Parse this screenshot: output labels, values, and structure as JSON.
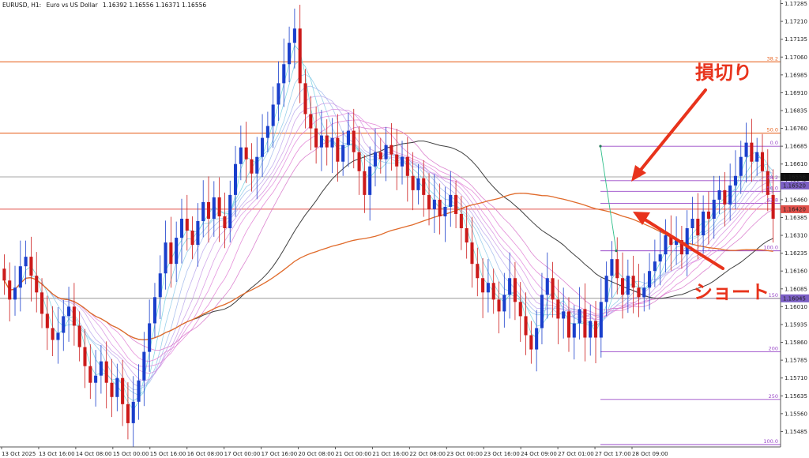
{
  "header": {
    "symbol": "EURUSD, H1:",
    "description": "Euro vs US Dollar",
    "ohlc": "1.16392 1.16556 1.16371 1.16556"
  },
  "annotations": {
    "stop_loss": "損切り",
    "short": "ショート"
  },
  "colors": {
    "bull": "#1a3fcc",
    "bear": "#cc1a1a",
    "orange_level": "#e86a2a",
    "fib_purple": "#9a49c8",
    "arrow": "#e8331c",
    "ma_slow": "#e06a2a",
    "ma_mid": "#404040"
  },
  "chart_data": {
    "type": "candlestick",
    "symbol": "EURUSD",
    "timeframe": "H1",
    "ylim": [
      1.1542,
      1.173
    ],
    "y_ticks": [
      "1.17285",
      "1.17210",
      "1.17135",
      "1.17060",
      "1.16985",
      "1.16910",
      "1.16835",
      "1.16760",
      "1.16685",
      "1.16610",
      "1.16535",
      "1.16460",
      "1.16385",
      "1.16310",
      "1.16235",
      "1.16160",
      "1.16085",
      "1.16010",
      "1.15935",
      "1.15860",
      "1.15785",
      "1.15710",
      "1.15635",
      "1.15560",
      "1.15485"
    ],
    "x_ticks": [
      "13 Oct 2025",
      "13 Oct 16:00",
      "14 Oct 08:00",
      "15 Oct 00:00",
      "15 Oct 16:00",
      "16 Oct 08:00",
      "17 Oct 00:00",
      "17 Oct 16:00",
      "20 Oct 08:00",
      "21 Oct 00:00",
      "21 Oct 16:00",
      "22 Oct 08:00",
      "23 Oct 00:00",
      "23 Oct 16:00",
      "24 Oct 09:00",
      "27 Oct 01:00",
      "27 Oct 17:00",
      "28 Oct 09:00"
    ],
    "closes": [
      1.1612,
      1.1604,
      1.1609,
      1.1618,
      1.1622,
      1.1614,
      1.1607,
      1.1598,
      1.1592,
      1.1587,
      1.159,
      1.1597,
      1.1601,
      1.1593,
      1.1584,
      1.1576,
      1.1569,
      1.1572,
      1.1578,
      1.1569,
      1.1563,
      1.1571,
      1.156,
      1.1552,
      1.1561,
      1.157,
      1.1582,
      1.1594,
      1.1605,
      1.1615,
      1.1628,
      1.1619,
      1.163,
      1.1638,
      1.1633,
      1.1627,
      1.1637,
      1.1645,
      1.1638,
      1.1647,
      1.1639,
      1.1634,
      1.1648,
      1.1661,
      1.1668,
      1.1663,
      1.1657,
      1.1664,
      1.1672,
      1.1677,
      1.1686,
      1.1695,
      1.1703,
      1.1712,
      1.1718,
      1.1695,
      1.1682,
      1.1676,
      1.1668,
      1.1673,
      1.1668,
      1.1672,
      1.1662,
      1.1669,
      1.1675,
      1.1666,
      1.1658,
      1.1648,
      1.166,
      1.1666,
      1.1663,
      1.1669,
      1.1665,
      1.166,
      1.1664,
      1.1656,
      1.165,
      1.1655,
      1.1648,
      1.1642,
      1.1646,
      1.1639,
      1.1643,
      1.1648,
      1.164,
      1.1634,
      1.1628,
      1.1619,
      1.1613,
      1.1607,
      1.1611,
      1.1604,
      1.1599,
      1.1606,
      1.1613,
      1.1603,
      1.1597,
      1.1589,
      1.1583,
      1.1592,
      1.1606,
      1.1613,
      1.1604,
      1.1596,
      1.1599,
      1.1588,
      1.1594,
      1.16,
      1.1588,
      1.1595,
      1.1588,
      1.1603,
      1.1614,
      1.1621,
      1.1613,
      1.1606,
      1.1614,
      1.1609,
      1.1605,
      1.1609,
      1.1616,
      1.162,
      1.1623,
      1.1631,
      1.1627,
      1.1629,
      1.1623,
      1.1634,
      1.1638,
      1.1631,
      1.1641,
      1.1638,
      1.1646,
      1.165,
      1.1644,
      1.1652,
      1.1656,
      1.1664,
      1.167,
      1.1662,
      1.1666,
      1.1658,
      1.1648,
      1.1638
    ],
    "levels_right": [
      {
        "label": "38.2",
        "value": 1.1704,
        "color": "orange"
      },
      {
        "label": "50.0",
        "value": 1.1674,
        "color": "orange"
      },
      {
        "label": "0.0",
        "value": 1.16685,
        "color": "purple"
      },
      {
        "label": "38.2",
        "value": 1.1654,
        "color": "purple"
      },
      {
        "label": "50.0",
        "value": 1.16495,
        "color": "purple"
      },
      {
        "label": "61.8",
        "value": 1.16445,
        "color": "purple"
      },
      {
        "label": "100.0",
        "value": 1.16245,
        "color": "purple"
      },
      {
        "label": "150",
        "value": 1.16045,
        "color": "purple"
      },
      {
        "label": "200",
        "value": 1.1582,
        "color": "purple"
      },
      {
        "label": "250",
        "value": 1.1562,
        "color": "purple"
      },
      {
        "label": "100.0",
        "value": 1.1543,
        "color": "purple"
      }
    ],
    "price_tags": [
      "1.16556",
      "1.16520",
      "1.16420",
      "1.16045"
    ],
    "annotations": [
      "損切り",
      "ショート"
    ]
  }
}
